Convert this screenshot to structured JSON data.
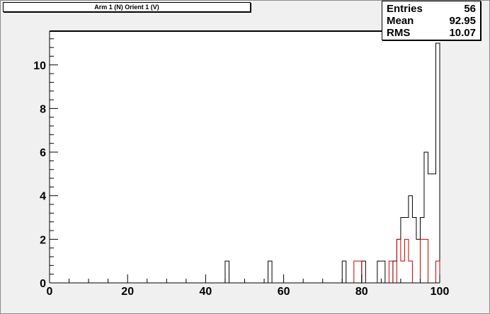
{
  "title": "Arm 1 (N) Orient 1 (V)",
  "stats": {
    "entries_label": "Entries",
    "entries_value": "56",
    "mean_label": "Mean",
    "mean_value": "92.95",
    "rms_label": "RMS",
    "rms_value": "10.07"
  },
  "chart_data": {
    "type": "histogram",
    "title": "Arm 1 (N) Orient 1 (V)",
    "xlim": [
      0,
      100
    ],
    "ylim": [
      0,
      11.55
    ],
    "bin_width": 1,
    "x_ticks": [
      "0",
      "20",
      "40",
      "60",
      "80",
      "100"
    ],
    "x_tick_values": [
      0,
      20,
      40,
      60,
      80,
      100
    ],
    "y_ticks": [
      "0",
      "2",
      "4",
      "6",
      "8",
      "10"
    ],
    "y_tick_values": [
      0,
      2,
      4,
      6,
      8,
      10
    ],
    "grid": false,
    "series": [
      {
        "color": "#000000",
        "bins": [
          {
            "x": 45,
            "y": 1
          },
          {
            "x": 56,
            "y": 1
          },
          {
            "x": 75,
            "y": 1
          },
          {
            "x": 80,
            "y": 1
          },
          {
            "x": 84,
            "y": 1
          },
          {
            "x": 85,
            "y": 1
          },
          {
            "x": 88,
            "y": 1
          },
          {
            "x": 89,
            "y": 2
          },
          {
            "x": 90,
            "y": 3
          },
          {
            "x": 91,
            "y": 3
          },
          {
            "x": 92,
            "y": 4
          },
          {
            "x": 93,
            "y": 3
          },
          {
            "x": 94,
            "y": 2
          },
          {
            "x": 95,
            "y": 3
          },
          {
            "x": 96,
            "y": 6
          },
          {
            "x": 97,
            "y": 5
          },
          {
            "x": 98,
            "y": 5
          },
          {
            "x": 99,
            "y": 11
          }
        ]
      },
      {
        "color": "#cc0000",
        "bins": [
          {
            "x": 78,
            "y": 1
          },
          {
            "x": 79,
            "y": 1
          },
          {
            "x": 81,
            "y": 0
          },
          {
            "x": 87,
            "y": 1
          },
          {
            "x": 89,
            "y": 2
          },
          {
            "x": 90,
            "y": 1
          },
          {
            "x": 91,
            "y": 2
          },
          {
            "x": 92,
            "y": 1
          },
          {
            "x": 95,
            "y": 2
          },
          {
            "x": 96,
            "y": 2
          },
          {
            "x": 99,
            "y": 1
          }
        ]
      }
    ]
  }
}
